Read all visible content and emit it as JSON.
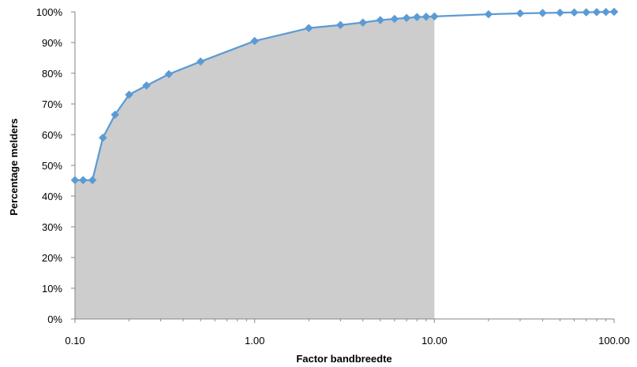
{
  "chart_data": {
    "type": "line",
    "title": "",
    "xlabel": "Factor bandbreedte",
    "ylabel": "Percentage melders",
    "x_scale": "log",
    "xlim": [
      0.1,
      100
    ],
    "ylim": [
      0,
      100
    ],
    "x_ticks": [
      0.1,
      1,
      10,
      100
    ],
    "x_tick_labels": [
      "0.10",
      "1.00",
      "10.00",
      "100.00"
    ],
    "y_ticks": [
      0,
      10,
      20,
      30,
      40,
      50,
      60,
      70,
      80,
      90,
      100
    ],
    "y_tick_labels": [
      "0%",
      "10%",
      "20%",
      "30%",
      "40%",
      "50%",
      "60%",
      "70%",
      "80%",
      "90%",
      "100%"
    ],
    "grid": false,
    "legend": "none",
    "shaded_region": {
      "x_from": 0.1,
      "x_to": 10,
      "color": "#cdcdcd"
    },
    "series": [
      {
        "color": "#5b9bd5",
        "marker": "diamond",
        "x": [
          0.1,
          0.111,
          0.125,
          0.143,
          0.167,
          0.2,
          0.25,
          0.333,
          0.5,
          1,
          2,
          3,
          4,
          5,
          6,
          7,
          8,
          9,
          10,
          20,
          30,
          40,
          50,
          60,
          70,
          80,
          90,
          100
        ],
        "values": [
          45.2,
          45.2,
          45.2,
          59,
          66.5,
          73,
          76,
          79.7,
          83.8,
          90.5,
          94.7,
          95.7,
          96.5,
          97.3,
          97.7,
          98,
          98.3,
          98.4,
          98.5,
          99.2,
          99.5,
          99.6,
          99.7,
          99.8,
          99.85,
          99.9,
          99.95,
          100
        ]
      }
    ]
  }
}
